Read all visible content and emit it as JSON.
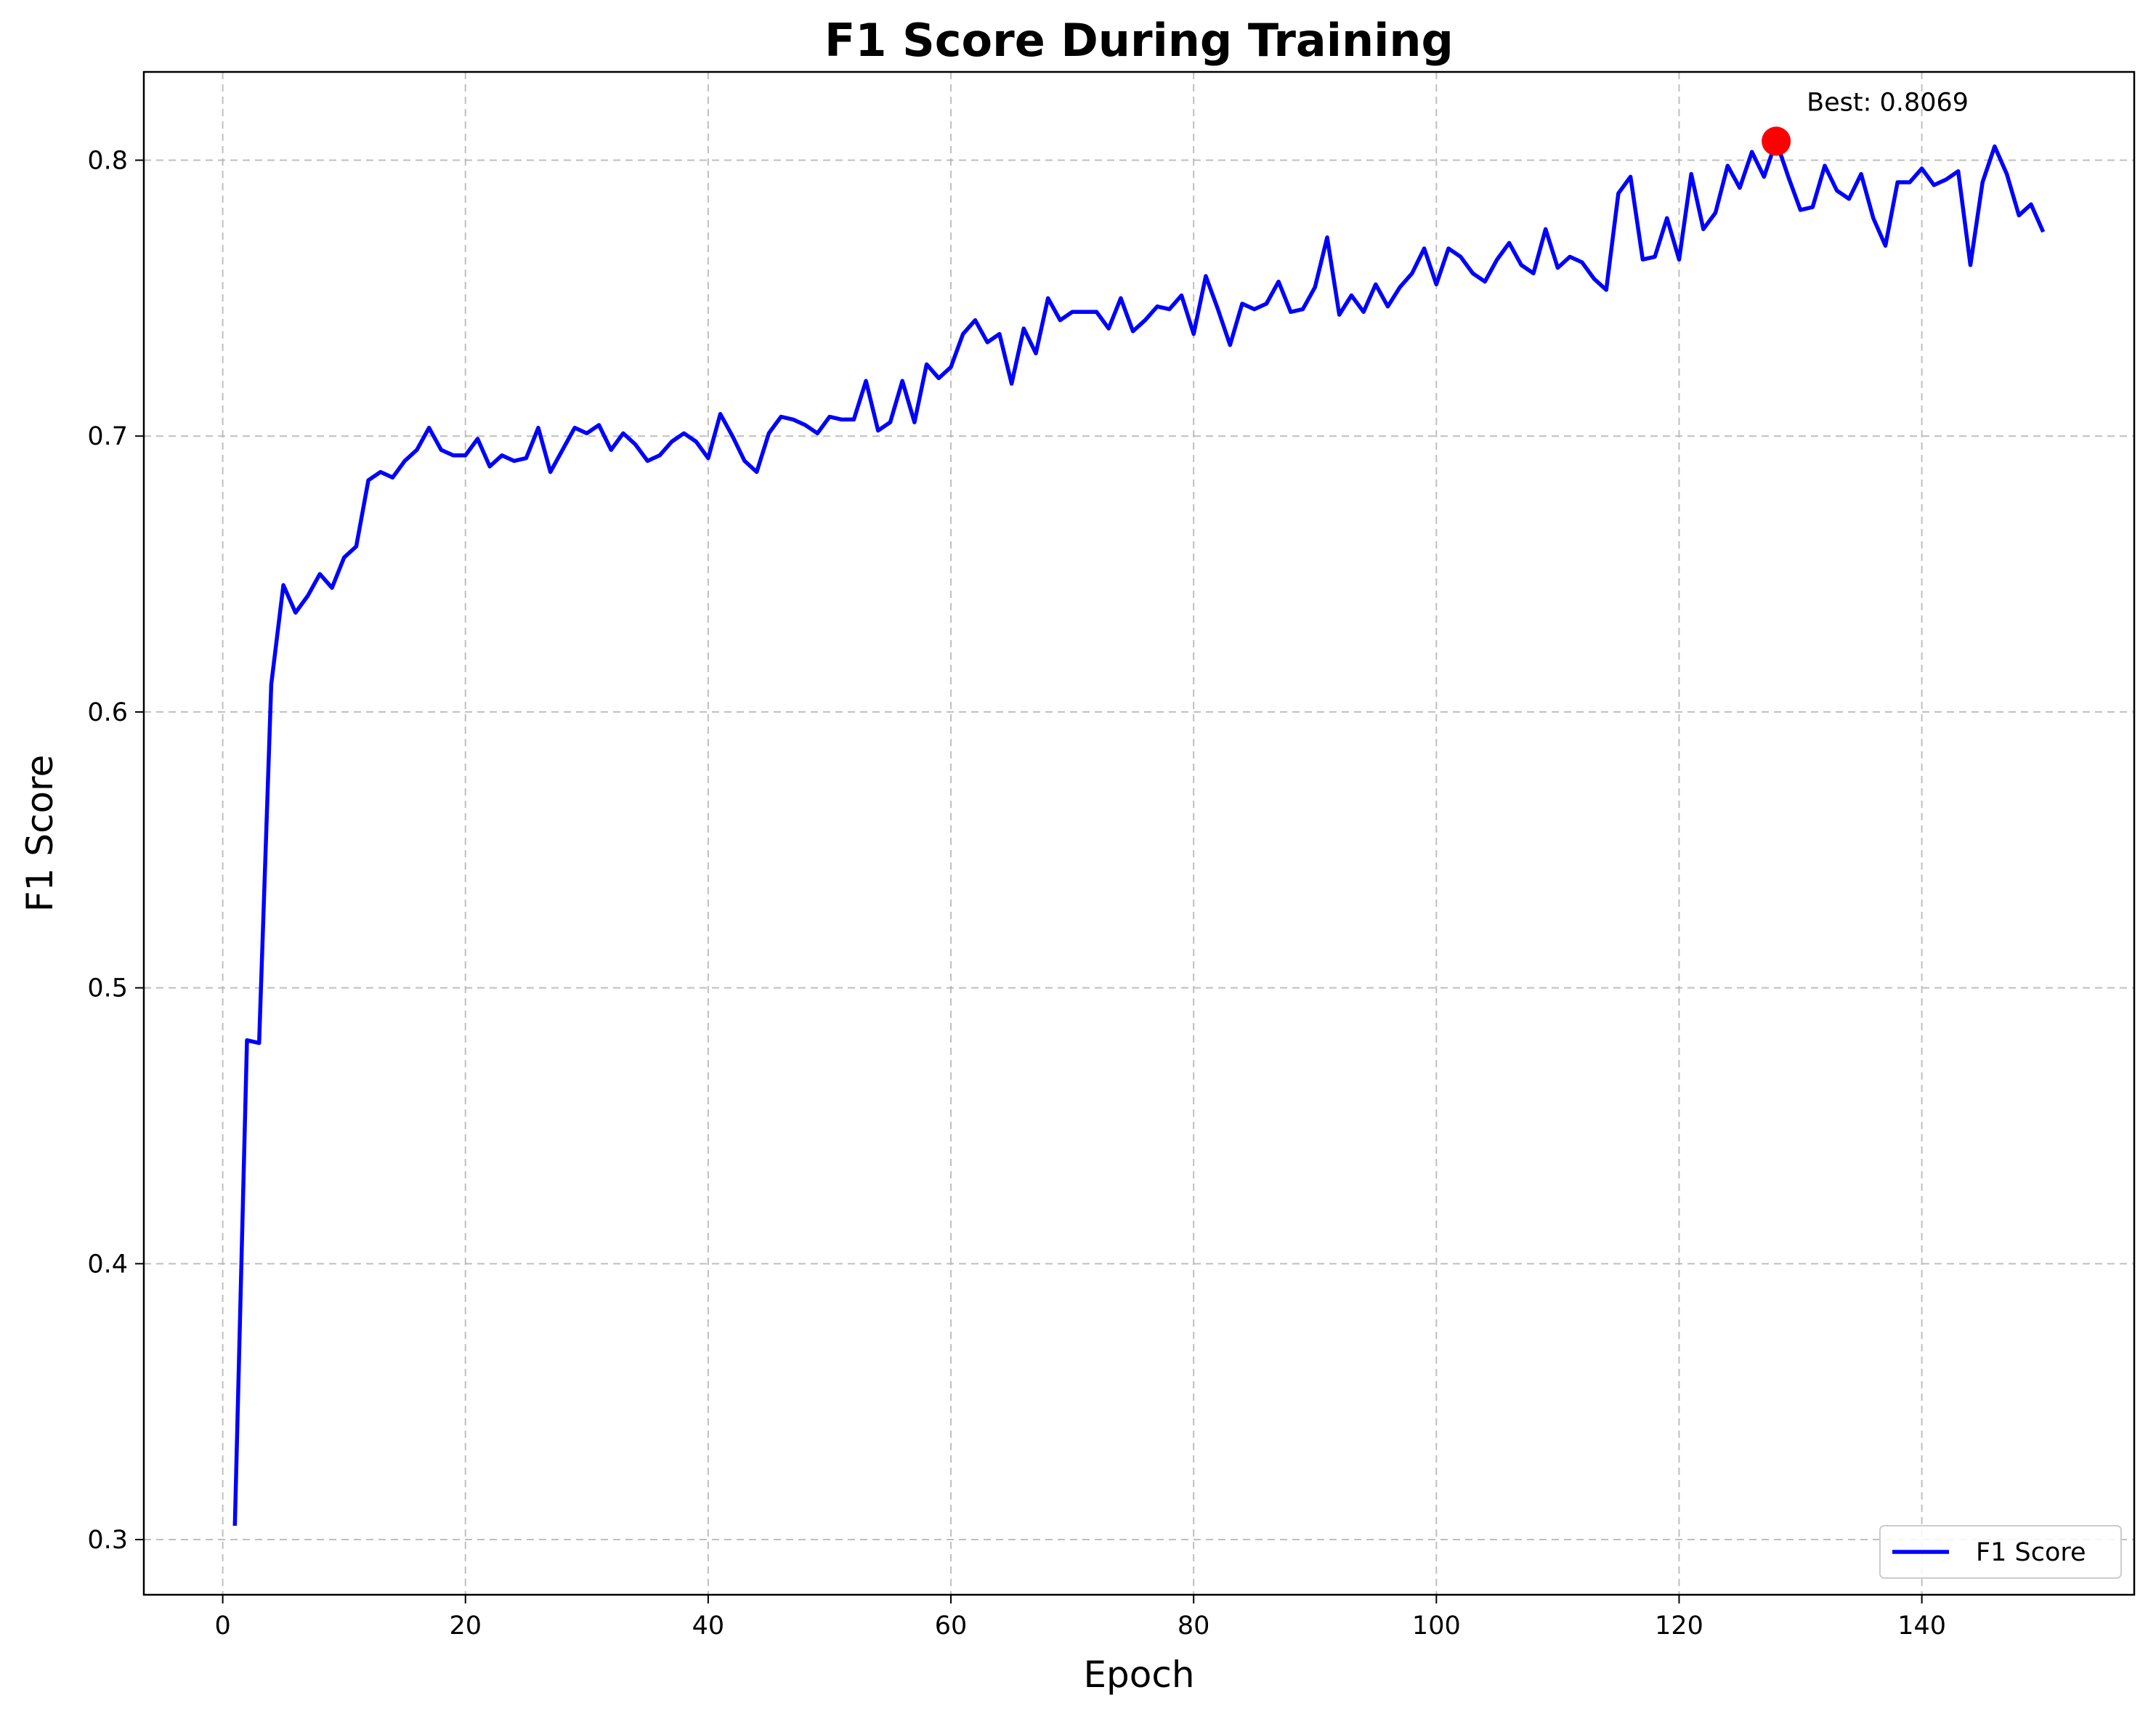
{
  "chart_data": {
    "type": "line",
    "title": "F1 Score During Training",
    "xlabel": "Epoch",
    "ylabel": "F1 Score",
    "xlim": [
      -6.5,
      157.5
    ],
    "ylim": [
      0.28,
      0.832
    ],
    "xticks": [
      0,
      20,
      40,
      60,
      80,
      100,
      120,
      140
    ],
    "yticks": [
      0.3,
      0.4,
      0.5,
      0.6,
      0.7,
      0.8
    ],
    "grid": true,
    "legend_position": "lower-right",
    "colors": {
      "line": "#0000ff",
      "best_marker": "#ff0000",
      "grid": "#b0b0b0"
    },
    "series": [
      {
        "name": "F1 Score",
        "x": [
          1,
          2,
          3,
          4,
          5,
          6,
          7,
          8,
          9,
          10,
          11,
          12,
          13,
          14,
          15,
          16,
          17,
          18,
          19,
          20,
          21,
          22,
          23,
          24,
          25,
          26,
          27,
          28,
          29,
          30,
          31,
          32,
          33,
          34,
          35,
          36,
          37,
          38,
          39,
          40,
          41,
          42,
          43,
          44,
          45,
          46,
          47,
          48,
          49,
          50,
          51,
          52,
          53,
          54,
          55,
          56,
          57,
          58,
          59,
          60,
          61,
          62,
          63,
          64,
          65,
          66,
          67,
          68,
          69,
          70,
          71,
          72,
          73,
          74,
          75,
          76,
          77,
          78,
          79,
          80,
          81,
          82,
          83,
          84,
          85,
          86,
          87,
          88,
          89,
          90,
          91,
          92,
          93,
          94,
          95,
          96,
          97,
          98,
          99,
          100,
          101,
          102,
          103,
          104,
          105,
          106,
          107,
          108,
          109,
          110,
          111,
          112,
          113,
          114,
          115,
          116,
          117,
          118,
          119,
          120,
          121,
          122,
          123,
          124,
          125,
          126,
          127,
          128,
          129,
          130,
          131,
          132,
          133,
          134,
          135,
          136,
          137,
          138,
          139,
          140,
          141,
          142,
          143,
          144,
          145,
          146,
          147,
          148,
          149,
          150
        ],
        "y": [
          0.305,
          0.481,
          0.48,
          0.61,
          0.646,
          0.636,
          0.642,
          0.65,
          0.645,
          0.656,
          0.66,
          0.684,
          0.687,
          0.685,
          0.691,
          0.695,
          0.703,
          0.695,
          0.693,
          0.693,
          0.699,
          0.689,
          0.693,
          0.691,
          0.692,
          0.703,
          0.687,
          0.695,
          0.703,
          0.701,
          0.704,
          0.695,
          0.701,
          0.697,
          0.691,
          0.693,
          0.698,
          0.701,
          0.698,
          0.692,
          0.708,
          0.7,
          0.691,
          0.687,
          0.701,
          0.707,
          0.706,
          0.704,
          0.701,
          0.707,
          0.706,
          0.706,
          0.72,
          0.702,
          0.705,
          0.72,
          0.705,
          0.726,
          0.721,
          0.725,
          0.737,
          0.742,
          0.734,
          0.737,
          0.719,
          0.739,
          0.73,
          0.75,
          0.742,
          0.745,
          0.745,
          0.745,
          0.739,
          0.75,
          0.738,
          0.742,
          0.747,
          0.746,
          0.751,
          0.737,
          0.758,
          0.746,
          0.733,
          0.748,
          0.746,
          0.748,
          0.756,
          0.745,
          0.746,
          0.754,
          0.772,
          0.744,
          0.751,
          0.745,
          0.755,
          0.747,
          0.754,
          0.759,
          0.768,
          0.755,
          0.768,
          0.765,
          0.759,
          0.756,
          0.764,
          0.77,
          0.762,
          0.759,
          0.775,
          0.761,
          0.765,
          0.763,
          0.757,
          0.753,
          0.788,
          0.794,
          0.764,
          0.765,
          0.779,
          0.764,
          0.795,
          0.775,
          0.781,
          0.798,
          0.79,
          0.803,
          0.794,
          0.807,
          0.794,
          0.782,
          0.783,
          0.798,
          0.789,
          0.786,
          0.795,
          0.779,
          0.769,
          0.792,
          0.792,
          0.797,
          0.791,
          0.793,
          0.796,
          0.762,
          0.792,
          0.805,
          0.795,
          0.78,
          0.784,
          0.774
        ]
      }
    ],
    "annotations": [
      {
        "text": "Best: 0.8069",
        "x": 128,
        "y": 0.8069
      }
    ]
  }
}
